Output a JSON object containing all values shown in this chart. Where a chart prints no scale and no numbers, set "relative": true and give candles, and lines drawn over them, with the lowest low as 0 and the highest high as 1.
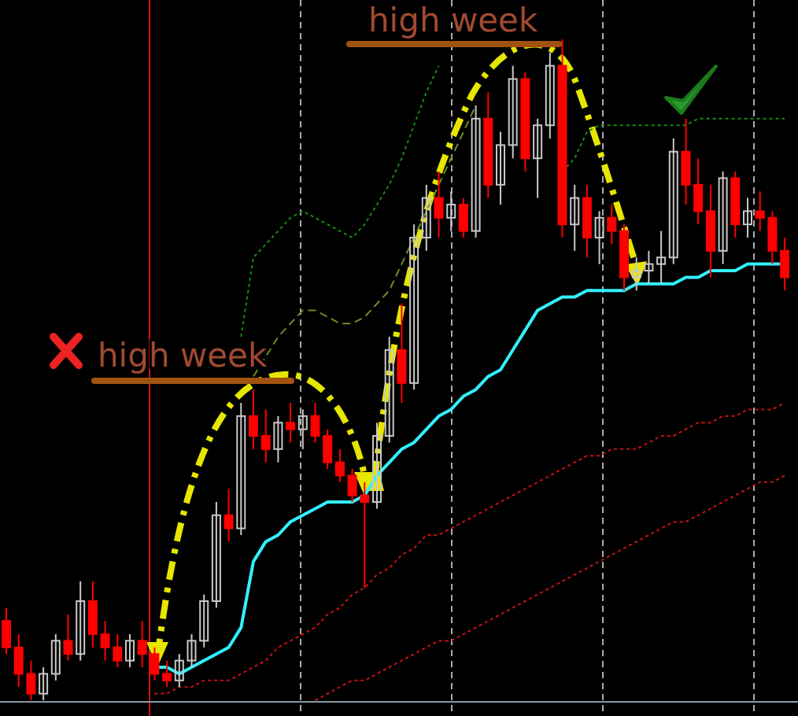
{
  "chart_data": {
    "type": "candlestick",
    "relative": true,
    "categories": [
      null,
      null,
      null,
      null,
      null,
      null,
      null,
      null,
      null,
      null,
      null,
      null,
      null,
      null,
      null,
      null,
      null,
      null,
      null,
      null,
      null,
      null,
      null,
      null,
      null,
      null,
      null,
      null,
      null,
      null,
      null,
      null,
      null,
      null,
      null,
      null,
      null,
      null,
      null,
      null,
      null,
      null,
      null,
      null,
      null,
      null,
      null,
      null,
      null,
      null,
      null,
      null,
      null,
      null,
      null,
      null,
      null,
      null,
      null,
      null,
      null,
      null,
      null,
      null
    ],
    "ohlc": [
      [
        0.12,
        0.14,
        0.07,
        0.08
      ],
      [
        0.08,
        0.1,
        0.02,
        0.04
      ],
      [
        0.04,
        0.06,
        0,
        0.01
      ],
      [
        0.01,
        0.05,
        0,
        0.04
      ],
      [
        0.04,
        0.1,
        0.03,
        0.09
      ],
      [
        0.09,
        0.13,
        0.06,
        0.07
      ],
      [
        0.07,
        0.18,
        0.06,
        0.15
      ],
      [
        0.15,
        0.18,
        0.08,
        0.1
      ],
      [
        0.1,
        0.12,
        0.06,
        0.08
      ],
      [
        0.08,
        0.1,
        0.05,
        0.06
      ],
      [
        0.06,
        0.1,
        0.05,
        0.09
      ],
      [
        0.09,
        0.12,
        0.05,
        0.07
      ],
      [
        0.07,
        0.08,
        0.03,
        0.04
      ],
      [
        0.04,
        0.06,
        0.02,
        0.03
      ],
      [
        0.03,
        0.07,
        0.02,
        0.06
      ],
      [
        0.06,
        0.1,
        0.05,
        0.09
      ],
      [
        0.09,
        0.16,
        0.08,
        0.15
      ],
      [
        0.15,
        0.3,
        0.14,
        0.28
      ],
      [
        0.28,
        0.32,
        0.24,
        0.26
      ],
      [
        0.26,
        0.45,
        0.25,
        0.43
      ],
      [
        0.43,
        0.47,
        0.38,
        0.4
      ],
      [
        0.4,
        0.44,
        0.36,
        0.38
      ],
      [
        0.38,
        0.43,
        0.36,
        0.42
      ],
      [
        0.42,
        0.45,
        0.39,
        0.41
      ],
      [
        0.41,
        0.44,
        0.38,
        0.43
      ],
      [
        0.43,
        0.45,
        0.39,
        0.4
      ],
      [
        0.4,
        0.41,
        0.35,
        0.36
      ],
      [
        0.36,
        0.38,
        0.33,
        0.34
      ],
      [
        0.34,
        0.35,
        0.3,
        0.31
      ],
      [
        0.31,
        0.33,
        0.17,
        0.3
      ],
      [
        0.3,
        0.42,
        0.29,
        0.4
      ],
      [
        0.4,
        0.55,
        0.39,
        0.53
      ],
      [
        0.53,
        0.6,
        0.45,
        0.48
      ],
      [
        0.48,
        0.72,
        0.47,
        0.7
      ],
      [
        0.7,
        0.78,
        0.68,
        0.76
      ],
      [
        0.76,
        0.8,
        0.7,
        0.73
      ],
      [
        0.73,
        0.77,
        0.71,
        0.75
      ],
      [
        0.75,
        0.76,
        0.7,
        0.71
      ],
      [
        0.71,
        0.9,
        0.7,
        0.88
      ],
      [
        0.88,
        0.92,
        0.76,
        0.78
      ],
      [
        0.78,
        0.86,
        0.75,
        0.84
      ],
      [
        0.84,
        0.96,
        0.82,
        0.94
      ],
      [
        0.94,
        0.95,
        0.8,
        0.82
      ],
      [
        0.82,
        0.88,
        0.76,
        0.87
      ],
      [
        0.87,
        0.98,
        0.85,
        0.96
      ],
      [
        0.96,
        1,
        0.7,
        0.72
      ],
      [
        0.72,
        0.78,
        0.68,
        0.76
      ],
      [
        0.76,
        0.78,
        0.67,
        0.7
      ],
      [
        0.7,
        0.74,
        0.66,
        0.73
      ],
      [
        0.73,
        0.75,
        0.69,
        0.71
      ],
      [
        0.71,
        0.72,
        0.62,
        0.64
      ],
      [
        0.64,
        0.67,
        0.62,
        0.65
      ],
      [
        0.65,
        0.68,
        0.63,
        0.66
      ],
      [
        0.66,
        0.71,
        0.63,
        0.67
      ],
      [
        0.67,
        0.85,
        0.66,
        0.83
      ],
      [
        0.83,
        0.88,
        0.75,
        0.78
      ],
      [
        0.78,
        0.82,
        0.72,
        0.74
      ],
      [
        0.74,
        0.78,
        0.64,
        0.68
      ],
      [
        0.68,
        0.8,
        0.66,
        0.79
      ],
      [
        0.79,
        0.8,
        0.7,
        0.72
      ],
      [
        0.72,
        0.76,
        0.7,
        0.74
      ],
      [
        0.74,
        0.77,
        0.71,
        0.73
      ],
      [
        0.73,
        0.74,
        0.66,
        0.68
      ],
      [
        0.68,
        0.7,
        0.62,
        0.64
      ]
    ],
    "colors": [
      "#ff0000",
      "#ff0000",
      "#ff0000",
      "#c8c8c8",
      "#c8c8c8",
      "#ff0000",
      "#c8c8c8",
      "#ff0000",
      "#ff0000",
      "#ff0000",
      "#c8c8c8",
      "#ff0000",
      "#ff0000",
      "#ff0000",
      "#c8c8c8",
      "#c8c8c8",
      "#c8c8c8",
      "#c8c8c8",
      "#ff0000",
      "#c8c8c8",
      "#ff0000",
      "#ff0000",
      "#c8c8c8",
      "#ff0000",
      "#c8c8c8",
      "#ff0000",
      "#ff0000",
      "#ff0000",
      "#ff0000",
      "#ff0000",
      "#c8c8c8",
      "#c8c8c8",
      "#ff0000",
      "#c8c8c8",
      "#c8c8c8",
      "#ff0000",
      "#c8c8c8",
      "#ff0000",
      "#c8c8c8",
      "#ff0000",
      "#c8c8c8",
      "#c8c8c8",
      "#ff0000",
      "#c8c8c8",
      "#c8c8c8",
      "#ff0000",
      "#c8c8c8",
      "#ff0000",
      "#c8c8c8",
      "#ff0000",
      "#ff0000",
      "#c8c8c8",
      "#c8c8c8",
      "#c8c8c8",
      "#c8c8c8",
      "#ff0000",
      "#ff0000",
      "#ff0000",
      "#c8c8c8",
      "#ff0000",
      "#c8c8c8",
      "#ff0000",
      "#ff0000",
      "#ff0000"
    ],
    "series": [
      {
        "type": "line",
        "color": "#33f0ff",
        "line_style": "solid",
        "values": [
          null,
          null,
          null,
          null,
          null,
          null,
          null,
          null,
          null,
          null,
          null,
          null,
          0.05,
          0.05,
          0.04,
          0.05,
          0.06,
          0.07,
          0.08,
          0.11,
          0.21,
          0.24,
          0.25,
          0.27,
          0.28,
          0.29,
          0.3,
          0.3,
          0.3,
          0.31,
          0.34,
          0.36,
          0.38,
          0.39,
          0.41,
          0.43,
          0.44,
          0.46,
          0.47,
          0.49,
          0.5,
          0.53,
          0.56,
          0.59,
          0.6,
          0.61,
          0.61,
          0.62,
          0.62,
          0.62,
          0.62,
          0.63,
          0.63,
          0.63,
          0.63,
          0.64,
          0.64,
          0.65,
          0.65,
          0.65,
          0.66,
          0.66,
          0.66,
          0.66
        ]
      },
      {
        "type": "line",
        "color": "#1a8a1a",
        "line_style": "dotted",
        "values": [
          null,
          null,
          null,
          null,
          null,
          null,
          null,
          null,
          null,
          null,
          null,
          null,
          null,
          null,
          null,
          null,
          null,
          null,
          null,
          0.55,
          0.67,
          0.69,
          0.71,
          0.73,
          0.74,
          0.73,
          0.72,
          0.71,
          0.7,
          0.72,
          0.75,
          0.78,
          0.82,
          0.87,
          0.92,
          0.96,
          null,
          null,
          null,
          null,
          null,
          null,
          null,
          null,
          null,
          0.8,
          0.82,
          0.86,
          0.87,
          0.87,
          0.87,
          0.87,
          0.87,
          0.87,
          0.87,
          0.87,
          0.88,
          0.88,
          0.88,
          0.88,
          0.88,
          0.88,
          0.88,
          0.88
        ]
      },
      {
        "type": "line",
        "color": "#6b8e23",
        "line_style": "dashed",
        "values": [
          null,
          null,
          null,
          null,
          null,
          null,
          null,
          null,
          null,
          null,
          null,
          null,
          null,
          null,
          null,
          null,
          null,
          null,
          null,
          null,
          0.49,
          0.52,
          0.55,
          0.57,
          0.59,
          0.59,
          0.58,
          0.57,
          0.57,
          0.58,
          0.6,
          0.62,
          0.66,
          0.7,
          0.74,
          0.78,
          0.82,
          0.86,
          0.9,
          null,
          null,
          null,
          null,
          null,
          null,
          null,
          null,
          null,
          null,
          null,
          null,
          null,
          null,
          null,
          null,
          null,
          null,
          null,
          null,
          null,
          null,
          null,
          null,
          null
        ]
      },
      {
        "type": "line",
        "color": "#cc1111",
        "line_style": "dotted",
        "values": [
          null,
          null,
          null,
          null,
          null,
          null,
          null,
          null,
          null,
          null,
          null,
          null,
          0.01,
          0.01,
          0.02,
          0.02,
          0.03,
          0.03,
          0.03,
          0.04,
          0.05,
          0.06,
          0.08,
          0.09,
          0.1,
          0.11,
          0.13,
          0.14,
          0.16,
          0.17,
          0.19,
          0.2,
          0.22,
          0.23,
          0.25,
          0.25,
          0.26,
          0.27,
          0.28,
          0.29,
          0.3,
          0.31,
          0.32,
          0.33,
          0.34,
          0.35,
          0.36,
          0.37,
          0.37,
          0.38,
          0.38,
          0.38,
          0.39,
          0.4,
          0.4,
          0.41,
          0.42,
          0.42,
          0.43,
          0.43,
          0.44,
          0.44,
          0.44,
          0.45
        ]
      },
      {
        "type": "line",
        "color": "#cc1111",
        "line_style": "dotted",
        "values": [
          null,
          null,
          null,
          null,
          null,
          null,
          null,
          null,
          null,
          null,
          null,
          null,
          null,
          null,
          null,
          null,
          null,
          null,
          null,
          null,
          null,
          null,
          null,
          null,
          null,
          0.0,
          0.01,
          0.02,
          0.03,
          0.03,
          0.04,
          0.05,
          0.06,
          0.07,
          0.08,
          0.09,
          0.09,
          0.1,
          0.11,
          0.12,
          0.13,
          0.14,
          0.15,
          0.16,
          0.17,
          0.18,
          0.19,
          0.2,
          0.21,
          0.22,
          0.23,
          0.24,
          0.25,
          0.26,
          0.27,
          0.27,
          0.28,
          0.29,
          0.3,
          0.31,
          0.32,
          0.33,
          0.33,
          0.34
        ]
      }
    ],
    "annotations": [
      "high week",
      "high week"
    ]
  }
}
